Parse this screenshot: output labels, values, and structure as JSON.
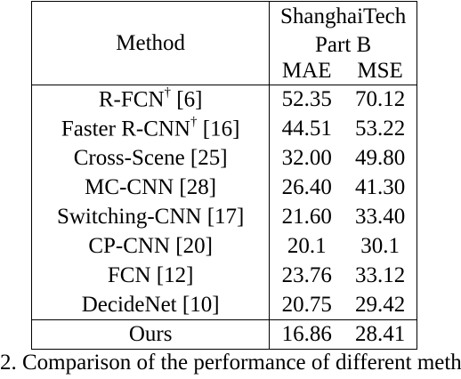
{
  "table": {
    "header": {
      "method": "Method",
      "dataset_line1": "ShanghaiTech",
      "dataset_line2": "Part B",
      "mae": "MAE",
      "mse": "MSE"
    },
    "rows": [
      {
        "method": "R-FCN",
        "dagger": "†",
        "ref": " [6]",
        "mae": "52.35",
        "mse": "70.12"
      },
      {
        "method": "Faster R-CNN",
        "dagger": "†",
        "ref": " [16]",
        "mae": "44.51",
        "mse": "53.22"
      },
      {
        "method": "Cross-Scene [25]",
        "mae": "32.00",
        "mse": "49.80"
      },
      {
        "method": "MC-CNN [28]",
        "mae": "26.40",
        "mse": "41.30"
      },
      {
        "method": "Switching-CNN [17]",
        "mae": "21.60",
        "mse": "33.40"
      },
      {
        "method": "CP-CNN [20]",
        "mae": "20.1",
        "mse": "30.1"
      },
      {
        "method": "FCN [12]",
        "mae": "23.76",
        "mse": "33.12"
      },
      {
        "method": "DecideNet [10]",
        "mae": "20.75",
        "mse": "29.42"
      },
      {
        "method": "Ours",
        "mae": "16.86",
        "mse": "28.41"
      }
    ]
  },
  "caption": "2. Comparison of the performance of different meth"
}
